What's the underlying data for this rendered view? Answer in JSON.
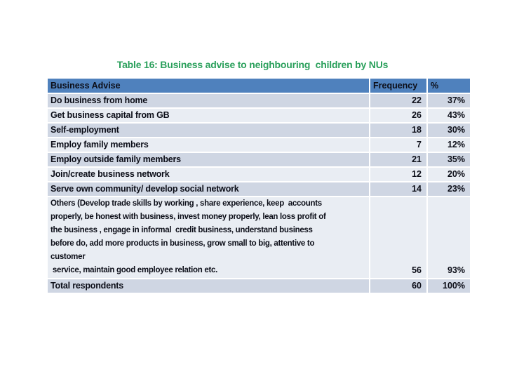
{
  "slide": {
    "title": "Table 16: Business advise to neighbouring  children by NUs"
  },
  "table": {
    "columns": [
      "Business Advise",
      "Frequency",
      "%"
    ],
    "rows": [
      {
        "label": "Do business from home",
        "frequency": "22",
        "percent": "37%"
      },
      {
        "label": "Get business capital from GB",
        "frequency": "26",
        "percent": "43%"
      },
      {
        "label": "Self-employment",
        "frequency": "18",
        "percent": "30%"
      },
      {
        "label": "Employ family members",
        "frequency": "7",
        "percent": "12%"
      },
      {
        "label": "Employ outside family members",
        "frequency": "21",
        "percent": "35%"
      },
      {
        "label": "Join/create business network",
        "frequency": "12",
        "percent": "20%"
      },
      {
        "label": "Serve own community/ develop social network",
        "frequency": "14",
        "percent": "23%"
      },
      {
        "label": "Others (Develop trade skills by working , share experience, keep  accounts\nproperly, be honest with business, invest money properly, lean loss profit of\nthe business , engage in informal  credit business, understand business\nbefore do, add more products in business, grow small to big, attentive to\ncustomer\n service, maintain good employee relation etc.",
        "frequency": "56",
        "percent": "93%"
      },
      {
        "label": "Total respondents",
        "frequency": "60",
        "percent": "100%"
      }
    ]
  },
  "colors": {
    "title": "#2BA05C",
    "header_bg": "#4F81BD",
    "band_dark": "#CFD6E3",
    "band_light": "#E9EDF3",
    "text": "#0C0E18",
    "divider": "#FFFFFF"
  }
}
